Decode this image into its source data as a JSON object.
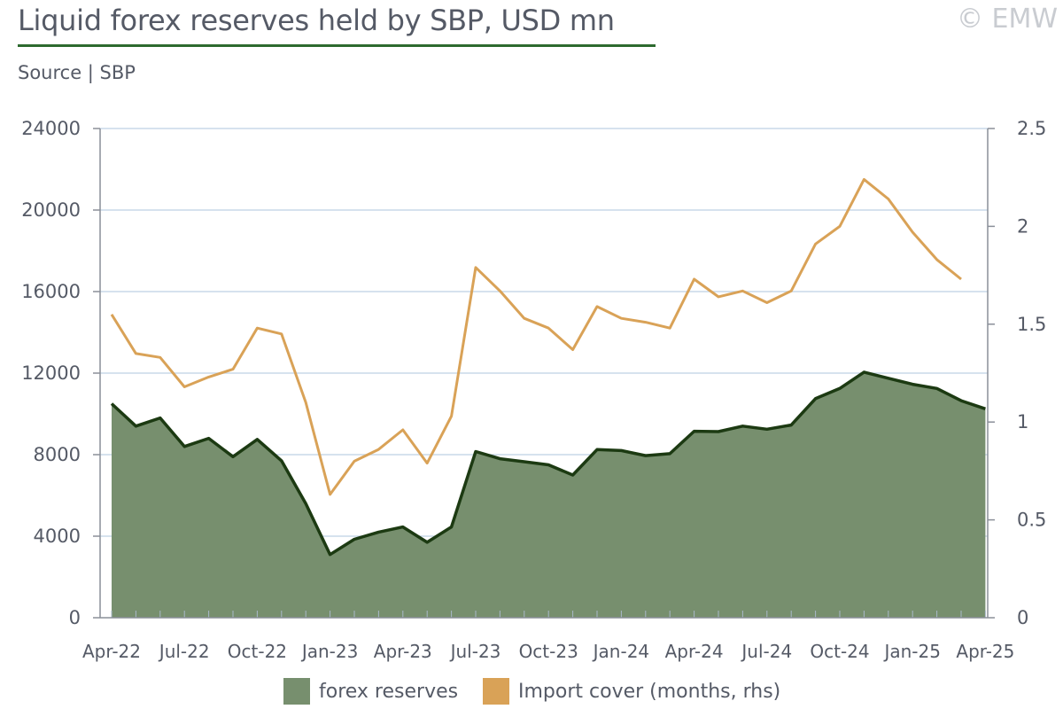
{
  "header": {
    "title": "Liquid forex reserves held by SBP, USD mn",
    "copyright": "© EMW",
    "source": "Source | SBP"
  },
  "colors": {
    "area_fill": "#778f6e",
    "area_line": "#1c3a12",
    "import_line": "#d9a257",
    "grid": "#c9d9e8",
    "axis": "#8a8f99",
    "title_rule": "#2d6a2f"
  },
  "chart_data": {
    "type": "area",
    "x_tick_labels": [
      "Apr-22",
      "Jul-22",
      "Oct-22",
      "Jan-23",
      "Apr-23",
      "Jul-23",
      "Oct-23",
      "Jan-24",
      "Apr-24",
      "Jul-24",
      "Oct-24",
      "Jan-25",
      "Apr-25"
    ],
    "x": [
      "Apr-22",
      "May-22",
      "Jun-22",
      "Jul-22",
      "Aug-22",
      "Sep-22",
      "Oct-22",
      "Nov-22",
      "Dec-22",
      "Jan-23",
      "Feb-23",
      "Mar-23",
      "Apr-23",
      "May-23",
      "Jun-23",
      "Jul-23",
      "Aug-23",
      "Sep-23",
      "Oct-23",
      "Nov-23",
      "Dec-23",
      "Jan-24",
      "Feb-24",
      "Mar-24",
      "Apr-24",
      "May-24",
      "Jun-24",
      "Jul-24",
      "Aug-24",
      "Sep-24",
      "Oct-24",
      "Nov-24",
      "Dec-24",
      "Jan-25",
      "Feb-25",
      "Mar-25",
      "Apr-25"
    ],
    "series": [
      {
        "name": "forex reserves",
        "axis": "left",
        "kind": "area",
        "values": [
          10500,
          9400,
          9800,
          8400,
          8800,
          7900,
          8750,
          7700,
          5600,
          3100,
          3850,
          4200,
          4450,
          3700,
          4450,
          8150,
          7800,
          7650,
          7500,
          7000,
          8250,
          8200,
          7950,
          8050,
          9150,
          9130,
          9400,
          9250,
          9450,
          10750,
          11250,
          12050,
          11750,
          11450,
          11250,
          10650,
          10250
        ]
      },
      {
        "name": "Import cover (months, rhs)",
        "axis": "right",
        "kind": "line",
        "values": [
          1.55,
          1.35,
          1.33,
          1.18,
          1.23,
          1.27,
          1.48,
          1.45,
          1.1,
          0.63,
          0.8,
          0.86,
          0.96,
          0.79,
          1.03,
          1.79,
          1.67,
          1.53,
          1.48,
          1.37,
          1.59,
          1.53,
          1.51,
          1.48,
          1.73,
          1.64,
          1.67,
          1.61,
          1.67,
          1.91,
          2.0,
          2.24,
          2.14,
          1.97,
          1.83,
          1.73,
          null
        ]
      }
    ],
    "y_left": {
      "ylim": [
        0,
        24000
      ],
      "ticks": [
        0,
        4000,
        8000,
        12000,
        16000,
        20000,
        24000
      ]
    },
    "y_right": {
      "ylim": [
        0,
        2.5
      ],
      "ticks": [
        "0",
        "0.5",
        "1",
        "1.5",
        "2",
        "2.5"
      ]
    },
    "grid": true,
    "legend_position": "bottom"
  }
}
